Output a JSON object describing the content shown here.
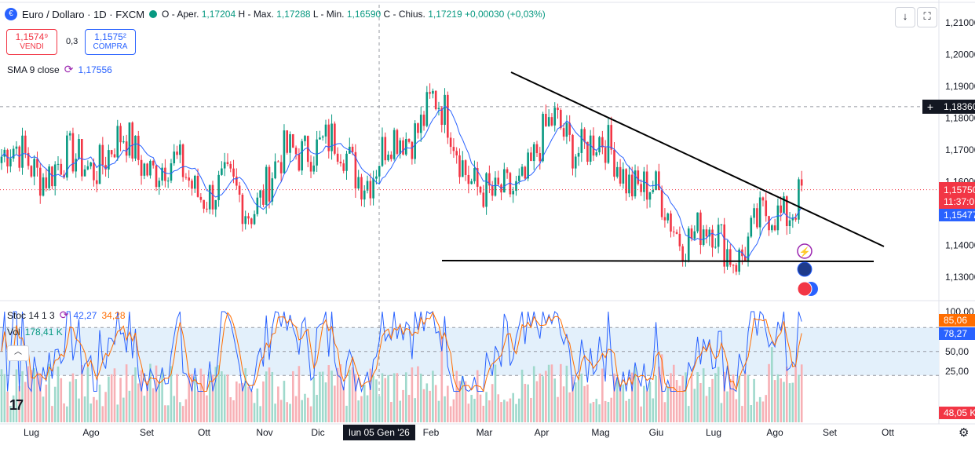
{
  "header": {
    "symbol_icon": "euro-dollar-flag-icon",
    "title": "Euro / Dollaro · 1D · FXCM",
    "o_label": "O - Aper.",
    "o_value": "1,17204",
    "h_label": "H - Max.",
    "h_value": "1,17288",
    "l_label": "L - Min.",
    "l_value": "1,16590",
    "c_label": "C - Chius.",
    "c_value": "1,17219",
    "change": "+0,00030 (+0,03%)"
  },
  "trade": {
    "sell_price": "1,1574⁹",
    "sell_label": "VENDI",
    "spread": "0,3",
    "buy_price": "1,1575²",
    "buy_label": "COMPRA"
  },
  "indicators": {
    "sma_label": "SMA 9 close",
    "sma_value": "1,17556",
    "stoch_label": "Stoc 14 1 3",
    "stoch_k": "42,27",
    "stoch_d": "34,28",
    "vol_label": "Vol",
    "vol_value": "178,41 K"
  },
  "price_axis": {
    "ticks": [
      "1,21000",
      "1,20000",
      "1,19000",
      "1,18000",
      "1,17000",
      "1,16000",
      "1,15000",
      "1,14000",
      "1,13000"
    ],
    "crosshair_label": "1,18360",
    "last_price_label": "1,15750",
    "countdown_label": "11:37:0",
    "sma_label": "1,15477"
  },
  "osc_axis": {
    "ticks": [
      "100,00",
      "75,00",
      "50,00",
      "25,00"
    ],
    "k_label": "85,06",
    "d_label": "78,27",
    "vol_label": "48,05 K"
  },
  "time_axis": {
    "labels": [
      "Lug",
      "Ago",
      "Set",
      "Ott",
      "Nov",
      "Dic",
      "Feb",
      "Mar",
      "Apr",
      "Mag",
      "Giu",
      "Lug",
      "Ago",
      "Set",
      "Ott"
    ],
    "crosshair_label": "lun 05 Gen '26"
  },
  "colors": {
    "up": "#089981",
    "down": "#f23645",
    "sma": "#2962ff",
    "stoch_k": "#2962ff",
    "stoch_d": "#ff6d00"
  },
  "events": [
    "lightning-event-icon",
    "eu-flag-event-icon",
    "us-flag-event-icon"
  ],
  "chart_data": {
    "type": "candlestick",
    "instrument": "Euro / Dollaro · 1D · FXCM",
    "y_range": [
      1.127,
      1.212
    ],
    "ohlc_last": {
      "open": 1.17204,
      "high": 1.17288,
      "low": 1.1659,
      "close": 1.17219
    },
    "monthly_close_approx": [
      {
        "month": "Lug",
        "close": 1.168
      },
      {
        "month": "Ago",
        "close": 1.164
      },
      {
        "month": "Set",
        "close": 1.171
      },
      {
        "month": "Ott",
        "close": 1.161
      },
      {
        "month": "Nov",
        "close": 1.153
      },
      {
        "month": "Dic",
        "close": 1.174
      },
      {
        "month": "Gen",
        "close": 1.163
      },
      {
        "month": "Feb",
        "close": 1.185
      },
      {
        "month": "Mar",
        "close": 1.151
      },
      {
        "month": "Apr",
        "close": 1.177
      },
      {
        "month": "Mag",
        "close": 1.167
      },
      {
        "month": "Giu",
        "close": 1.146
      },
      {
        "month": "Lug",
        "close": 1.139
      },
      {
        "month": "Ago",
        "close": 1.1575
      }
    ],
    "stochastic": {
      "k": 42.27,
      "d": 34.28,
      "levels": [
        80,
        50,
        20
      ]
    },
    "volume_last": 178.41
  }
}
